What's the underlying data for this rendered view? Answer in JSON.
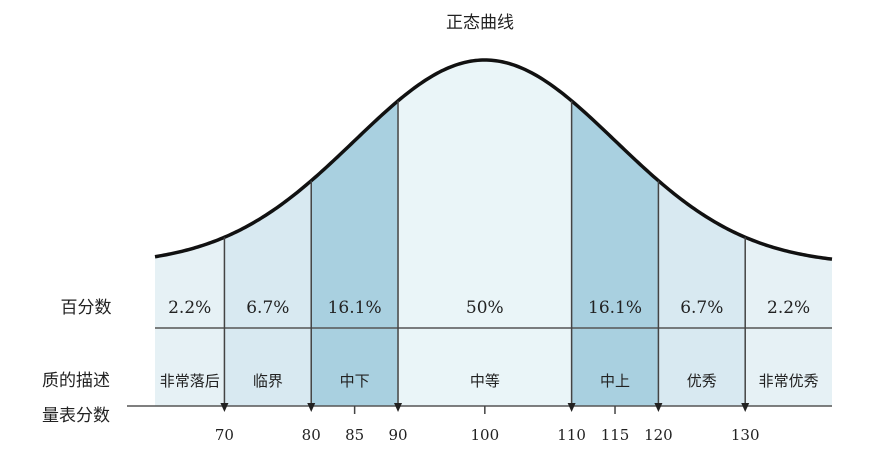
{
  "title": "正态曲线",
  "row_labels": {
    "percent": "百分数",
    "quality": "质的描述",
    "scale": "量表分数"
  },
  "colors": {
    "outer": "#e6f1f5",
    "light": "#d8e9f1",
    "mid": "#a9d0e0",
    "center": "#eaf5f8",
    "line": "#111111"
  },
  "chart_data": {
    "type": "normal-distribution",
    "title": "正态曲线",
    "mean": 100,
    "sd": 15,
    "x_range": [
      62,
      140
    ],
    "bins": [
      {
        "from": 62,
        "to": 70,
        "percent": "2.2%",
        "label": "非常落后",
        "shade": "outer"
      },
      {
        "from": 70,
        "to": 80,
        "percent": "6.7%",
        "label": "临界",
        "shade": "light"
      },
      {
        "from": 80,
        "to": 90,
        "percent": "16.1%",
        "label": "中下",
        "shade": "mid"
      },
      {
        "from": 90,
        "to": 110,
        "percent": "50%",
        "label": "中等",
        "shade": "center"
      },
      {
        "from": 110,
        "to": 120,
        "percent": "16.1%",
        "label": "中上",
        "shade": "mid"
      },
      {
        "from": 120,
        "to": 130,
        "percent": "6.7%",
        "label": "优秀",
        "shade": "light"
      },
      {
        "from": 130,
        "to": 140,
        "percent": "2.2%",
        "label": "非常优秀",
        "shade": "outer"
      }
    ],
    "boundary_ticks": [
      70,
      80,
      90,
      110,
      120,
      130
    ],
    "tick_labels": [
      "70",
      "80",
      "85",
      "90",
      "100",
      "110",
      "115",
      "120",
      "130"
    ]
  }
}
